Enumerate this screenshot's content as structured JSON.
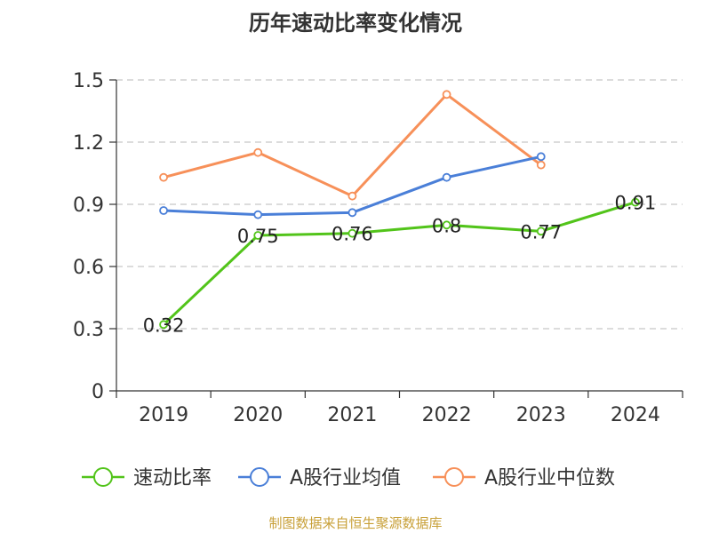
{
  "chart_data": {
    "type": "line",
    "title": "历年速动比率变化情况",
    "categories": [
      "2019",
      "2020",
      "2021",
      "2022",
      "2023",
      "2024"
    ],
    "yticks": [
      "0",
      "0.3",
      "0.6",
      "0.9",
      "1.2",
      "1.5"
    ],
    "ylim": [
      0,
      1.5
    ],
    "grid": true,
    "legend_position": "bottom",
    "series": [
      {
        "name": "速动比率",
        "color": "#52c41a",
        "values": [
          0.32,
          0.75,
          0.76,
          0.8,
          0.77,
          0.91
        ],
        "labels": [
          "0.32",
          "0.75",
          "0.76",
          "0.8",
          "0.77",
          "0.91"
        ]
      },
      {
        "name": "A股行业均值",
        "color": "#4a7fd8",
        "values": [
          0.87,
          0.85,
          0.86,
          1.03,
          1.13,
          null
        ]
      },
      {
        "name": "A股行业中位数",
        "color": "#f79059",
        "values": [
          1.03,
          1.15,
          0.94,
          1.43,
          1.09,
          null
        ]
      }
    ]
  },
  "footer": "制图数据来自恒生聚源数据库"
}
